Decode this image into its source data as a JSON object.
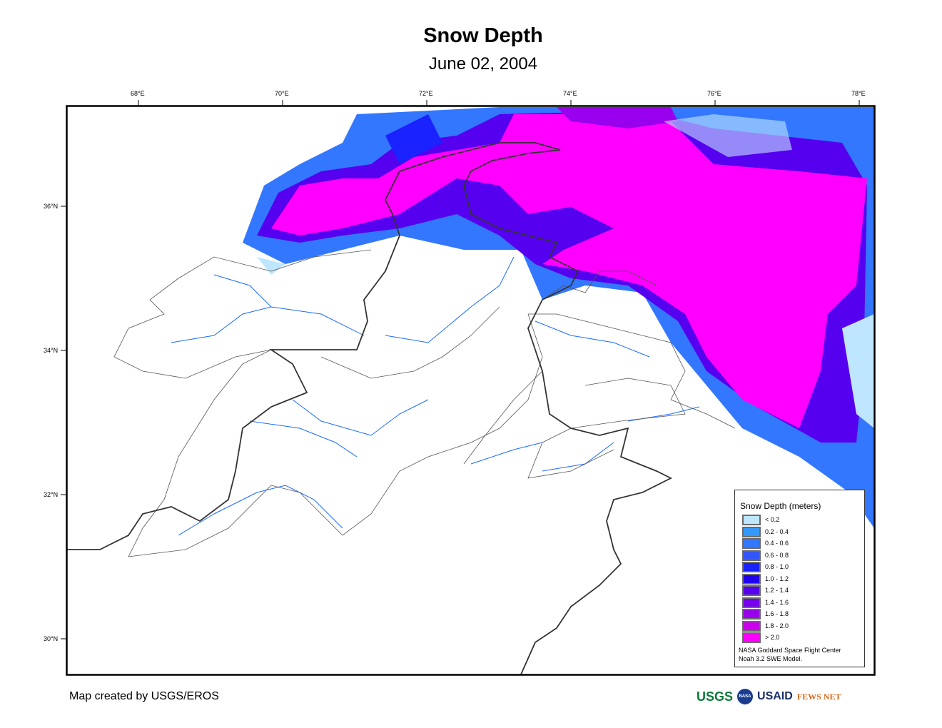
{
  "header": {
    "title": "Snow Depth",
    "date": "June 02, 2004"
  },
  "axes": {
    "lon_ticks": [
      "68°E",
      "70°E",
      "72°E",
      "74°E",
      "76°E",
      "78°E"
    ],
    "lat_ticks": [
      "36°N",
      "34°N",
      "32°N",
      "30°N"
    ]
  },
  "legend": {
    "title": "Snow Depth (meters)",
    "items": [
      {
        "label": "< 0.2",
        "color": "#bfe6ff"
      },
      {
        "label": "0.2 - 0.4",
        "color": "#3399ff"
      },
      {
        "label": "0.4 - 0.6",
        "color": "#3377ff"
      },
      {
        "label": "0.6 - 0.8",
        "color": "#3355ff"
      },
      {
        "label": "0.8 - 1.0",
        "color": "#1a22ff"
      },
      {
        "label": "1.0 - 1.2",
        "color": "#2200ee"
      },
      {
        "label": "1.2 - 1.4",
        "color": "#5500ee"
      },
      {
        "label": "1.4 - 1.6",
        "color": "#7700ee"
      },
      {
        "label": "1.6 - 1.8",
        "color": "#9900ee"
      },
      {
        "label": "1.8 - 2.0",
        "color": "#cc00ee"
      },
      {
        "label": "> 2.0",
        "color": "#ff00ff"
      }
    ],
    "source_line1": "NASA Goddard Space Flight Center",
    "source_line2": "Noah 3.2 SWE Model."
  },
  "footer": {
    "credit": "Map created by USGS/EROS",
    "logos": [
      "USGS",
      "NASA",
      "USAID",
      "FEWS NET"
    ]
  }
}
